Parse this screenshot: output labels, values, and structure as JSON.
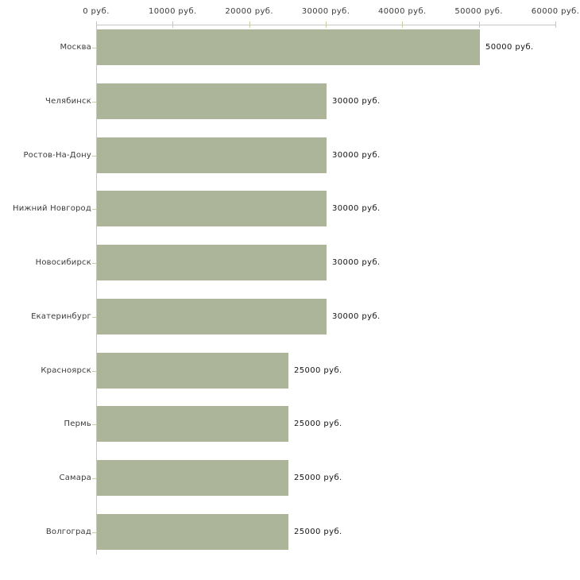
{
  "chart_data": {
    "type": "bar",
    "orientation": "horizontal",
    "title": "",
    "xlabel": "",
    "ylabel": "",
    "unit": "руб.",
    "categories": [
      "Москва",
      "Челябинск",
      "Ростов-На-Дону",
      "Нижний Новгород",
      "Новосибирск",
      "Екатеринбург",
      "Красноярск",
      "Пермь",
      "Самара",
      "Волгоград"
    ],
    "values": [
      50000,
      30000,
      30000,
      30000,
      30000,
      30000,
      25000,
      25000,
      25000,
      25000
    ],
    "value_labels": [
      "50000 руб.",
      "30000 руб.",
      "30000 руб.",
      "30000 руб.",
      "30000 руб.",
      "30000 руб.",
      "25000 руб.",
      "25000 руб.",
      "25000 руб.",
      "25000 руб."
    ],
    "x_ticks": {
      "values": [
        0,
        10000,
        20000,
        30000,
        40000,
        50000,
        60000
      ],
      "labels": [
        "0 руб.",
        "10000 руб.",
        "20000 руб.",
        "30000 руб.",
        "40000 руб.",
        "50000 руб.",
        "60000 руб."
      ]
    },
    "xlim": [
      0,
      60000
    ],
    "grid": false,
    "legend": "none",
    "colors": {
      "bar": "#acb49a",
      "axis_line": "#c6c6c6",
      "tick_mark": "#cbcba0",
      "axis_label": "#3b3b3b",
      "category_label": "#3b3b3b",
      "value_label": "#141414",
      "background": "#ffffff"
    }
  }
}
